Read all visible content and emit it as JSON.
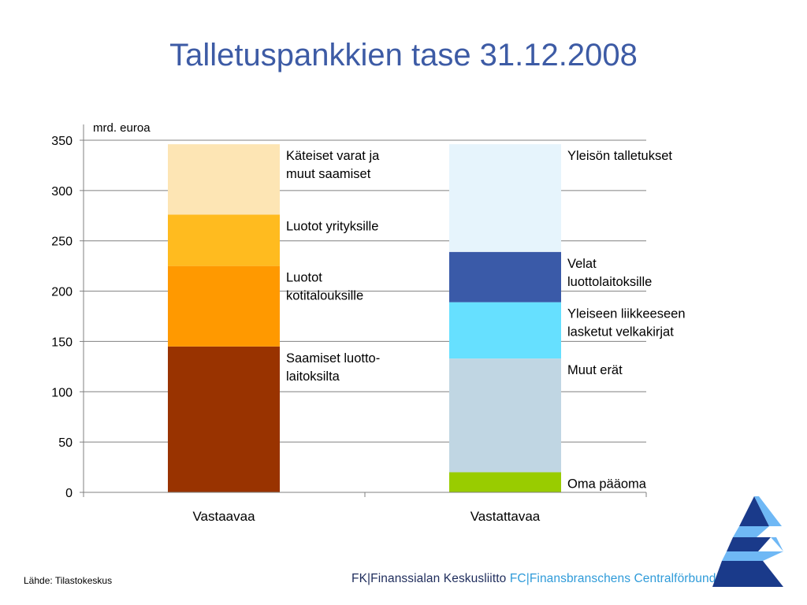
{
  "title": "Talletuspankkien tase 31.12.2008",
  "source": "Lähde: Tilastokeskus",
  "footer": {
    "fi_abbr": "FK",
    "fi_name": "Finanssialan Keskusliitto",
    "sv_abbr": "FC",
    "sv_name": "Finansbranschens Centralförbund"
  },
  "logo_icon": "stepped-triangle-logo",
  "chart_data": {
    "type": "bar",
    "stacked": true,
    "title": "",
    "ylabel": "mrd. euroa",
    "ylim": [
      0,
      350
    ],
    "yticks": [
      0,
      50,
      100,
      150,
      200,
      250,
      300,
      350
    ],
    "grid": true,
    "categories": [
      "Vastaavaa",
      "Vastattavaa"
    ],
    "stacks": [
      {
        "category": "Vastaavaa",
        "segments": [
          {
            "name": "Saamiset luotto-laitoksilta",
            "label_lines": [
              "Saamiset luotto-",
              "laitoksilta"
            ],
            "value": 145,
            "color": "#993300"
          },
          {
            "name": "Luotot kotitalouksille",
            "label_lines": [
              "Luotot",
              "kotitalouksille"
            ],
            "value": 80,
            "color": "#ff9900"
          },
          {
            "name": "Luotot yrityksille",
            "label_lines": [
              "Luotot yrityksille"
            ],
            "value": 51,
            "color": "#ffbb1f"
          },
          {
            "name": "Käteiset varat ja muut saamiset",
            "label_lines": [
              "Käteiset varat ja",
              "muut saamiset"
            ],
            "value": 70,
            "color": "#fde5b4"
          }
        ]
      },
      {
        "category": "Vastattavaa",
        "segments": [
          {
            "name": "Oma pääoma",
            "label_lines": [
              "Oma pääoma"
            ],
            "value": 20,
            "color": "#99cc00"
          },
          {
            "name": "Muut erät",
            "label_lines": [
              "Muut erät"
            ],
            "value": 113,
            "color": "#c0d6e3"
          },
          {
            "name": "Yleiseen liikkeeseen lasketut velkakirjat",
            "label_lines": [
              "Yleiseen liikkeeseen",
              "lasketut velkakirjat"
            ],
            "value": 56,
            "color": "#66e0ff"
          },
          {
            "name": "Velat luottolaitoksille",
            "label_lines": [
              "Velat",
              "luottolaitoksille"
            ],
            "value": 50,
            "color": "#3a5aa8"
          },
          {
            "name": "Yleisön talletukset",
            "label_lines": [
              "Yleisön talletukset"
            ],
            "value": 107,
            "color": "#e6f4fc"
          }
        ]
      }
    ]
  }
}
